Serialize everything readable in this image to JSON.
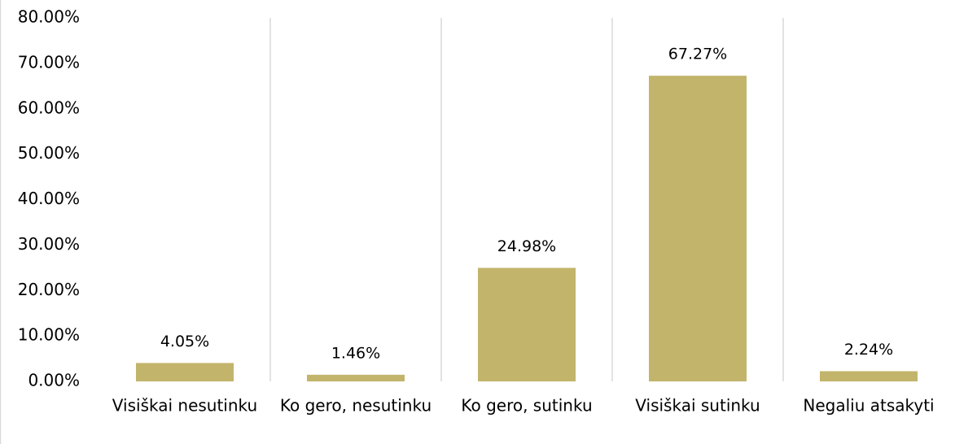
{
  "chart_data": {
    "type": "bar",
    "categories": [
      "Visiškai nesutinku",
      "Ko gero, nesutinku",
      "Ko gero, sutinku",
      "Visiškai sutinku",
      "Negaliu atsakyti"
    ],
    "values": [
      4.05,
      1.46,
      24.98,
      67.27,
      2.24
    ],
    "value_labels": [
      "4.05%",
      "1.46%",
      "24.98%",
      "67.27%",
      "2.24%"
    ],
    "color": "#c2b46b",
    "ylim": [
      0,
      80
    ],
    "yticks": [
      {
        "value": 0,
        "label": "0.00%"
      },
      {
        "value": 10,
        "label": "10.00%"
      },
      {
        "value": 20,
        "label": "20.00%"
      },
      {
        "value": 30,
        "label": "30.00%"
      },
      {
        "value": 40,
        "label": "40.00%"
      },
      {
        "value": 50,
        "label": "50.00%"
      },
      {
        "value": 60,
        "label": "60.00%"
      },
      {
        "value": 70,
        "label": "70.00%"
      },
      {
        "value": 80,
        "label": "80.00%"
      }
    ]
  }
}
